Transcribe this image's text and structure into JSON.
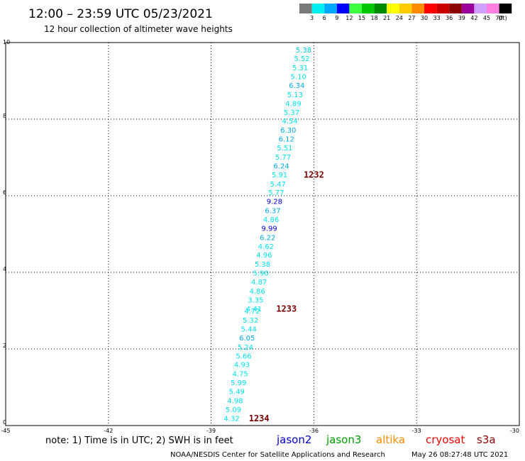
{
  "header": {
    "title": "12:00 – 23:59 UTC 05/23/2021",
    "subtitle": "12 hour collection of altimeter wave heights"
  },
  "legend": {
    "unit": "(ft)",
    "bins": [
      {
        "label": "3",
        "color": "#7a7a7a"
      },
      {
        "label": "6",
        "color": "#00f0f0"
      },
      {
        "label": "9",
        "color": "#00a8ff"
      },
      {
        "label": "12",
        "color": "#0000ff"
      },
      {
        "label": "15",
        "color": "#40ff40"
      },
      {
        "label": "18",
        "color": "#00c800"
      },
      {
        "label": "21",
        "color": "#008c00"
      },
      {
        "label": "24",
        "color": "#ffff00"
      },
      {
        "label": "27",
        "color": "#ffcc00"
      },
      {
        "label": "30",
        "color": "#ff8c00"
      },
      {
        "label": "33",
        "color": "#ff0000"
      },
      {
        "label": "36",
        "color": "#c80000"
      },
      {
        "label": "39",
        "color": "#8b0000"
      },
      {
        "label": "42",
        "color": "#9a009a"
      },
      {
        "label": "45",
        "color": "#d0a0ff"
      },
      {
        "label": "70",
        "color": "#ff80e0"
      },
      {
        "label": "",
        "color": "#000000"
      }
    ]
  },
  "chart_data": {
    "type": "scatter",
    "xlim": [
      -45,
      -30
    ],
    "ylim": [
      0,
      10
    ],
    "x_ticks": [
      -45,
      -42,
      -39,
      -36,
      -33,
      -30
    ],
    "y_ticks": [
      0,
      2,
      4,
      6,
      8,
      10
    ],
    "x_tick_labels": [
      "-45",
      "-42",
      "-39",
      "-36",
      "-33",
      "-30"
    ],
    "y_tick_labels": [
      "0",
      "2",
      "4",
      "6",
      "8",
      "10"
    ],
    "grid": true,
    "points": [
      {
        "x": -36.3,
        "y": 9.8,
        "label": "5.38",
        "color": "#00c8d8"
      },
      {
        "x": -36.35,
        "y": 9.57,
        "label": "5.52",
        "color": "#00e0f0"
      },
      {
        "x": -36.4,
        "y": 9.33,
        "label": "5.31",
        "color": "#00e0f0"
      },
      {
        "x": -36.45,
        "y": 9.1,
        "label": "5.10",
        "color": "#00e0f0"
      },
      {
        "x": -36.5,
        "y": 8.87,
        "label": "6.34",
        "color": "#00a8e8"
      },
      {
        "x": -36.55,
        "y": 8.63,
        "label": "5.13",
        "color": "#00e0f0"
      },
      {
        "x": -36.6,
        "y": 8.4,
        "label": "4.89",
        "color": "#00e0f0"
      },
      {
        "x": -36.65,
        "y": 8.17,
        "label": "5.37",
        "color": "#00e0f0"
      },
      {
        "x": -36.7,
        "y": 7.94,
        "label": "4.54",
        "color": "#00e0f0"
      },
      {
        "x": -36.75,
        "y": 7.7,
        "label": "6.30",
        "color": "#00a8e8"
      },
      {
        "x": -36.8,
        "y": 7.47,
        "label": "6.12",
        "color": "#00a8e8"
      },
      {
        "x": -36.85,
        "y": 7.24,
        "label": "5.51",
        "color": "#00e0f0"
      },
      {
        "x": -36.9,
        "y": 7.0,
        "label": "5.77",
        "color": "#00e0f0"
      },
      {
        "x": -36.95,
        "y": 6.77,
        "label": "6.24",
        "color": "#00a8e8"
      },
      {
        "x": -37.0,
        "y": 6.54,
        "label": "5.91",
        "color": "#00e0f0"
      },
      {
        "x": -37.05,
        "y": 6.3,
        "label": "5.47",
        "color": "#00e0f0"
      },
      {
        "x": -37.1,
        "y": 6.07,
        "label": "5.77",
        "color": "#00e0f0"
      },
      {
        "x": -37.15,
        "y": 5.84,
        "label": "9.28",
        "color": "#0000e0"
      },
      {
        "x": -37.2,
        "y": 5.6,
        "label": "6.37",
        "color": "#00a8e8"
      },
      {
        "x": -37.25,
        "y": 5.37,
        "label": "4.86",
        "color": "#00e0f0"
      },
      {
        "x": -37.3,
        "y": 5.14,
        "label": "9.99",
        "color": "#0000e0"
      },
      {
        "x": -37.35,
        "y": 4.9,
        "label": "6.22",
        "color": "#00a8e8"
      },
      {
        "x": -37.4,
        "y": 4.67,
        "label": "4.62",
        "color": "#00e0f0"
      },
      {
        "x": -37.45,
        "y": 4.44,
        "label": "4.96",
        "color": "#00e0f0"
      },
      {
        "x": -37.5,
        "y": 4.2,
        "label": "5.38",
        "color": "#00e0f0"
      },
      {
        "x": -37.55,
        "y": 3.97,
        "label": "5.90",
        "color": "#00e0f0"
      },
      {
        "x": -37.6,
        "y": 3.74,
        "label": "4.87",
        "color": "#00e0f0"
      },
      {
        "x": -37.65,
        "y": 3.5,
        "label": "4.86",
        "color": "#00e0f0"
      },
      {
        "x": -37.7,
        "y": 3.27,
        "label": "3.35",
        "color": "#00e0f0"
      },
      {
        "x": -37.75,
        "y": 3.04,
        "label": "4.41",
        "color": "#00e0f0"
      },
      {
        "x": -37.8,
        "y": 2.98,
        "label": "4.72",
        "color": "#00e0f0"
      },
      {
        "x": -37.85,
        "y": 2.74,
        "label": "5.32",
        "color": "#00e0f0"
      },
      {
        "x": -37.9,
        "y": 2.51,
        "label": "5.44",
        "color": "#00e0f0"
      },
      {
        "x": -37.95,
        "y": 2.28,
        "label": "6.05",
        "color": "#00a8e8"
      },
      {
        "x": -38.0,
        "y": 2.04,
        "label": "5.24",
        "color": "#00e0f0"
      },
      {
        "x": -38.05,
        "y": 1.81,
        "label": "5.66",
        "color": "#00e0f0"
      },
      {
        "x": -38.1,
        "y": 1.58,
        "label": "4.93",
        "color": "#00e0f0"
      },
      {
        "x": -38.15,
        "y": 1.34,
        "label": "4.75",
        "color": "#00e0f0"
      },
      {
        "x": -38.2,
        "y": 1.11,
        "label": "5.99",
        "color": "#00e0f0"
      },
      {
        "x": -38.25,
        "y": 0.88,
        "label": "5.49",
        "color": "#00e0f0"
      },
      {
        "x": -38.3,
        "y": 0.64,
        "label": "4.98",
        "color": "#00e0f0"
      },
      {
        "x": -38.35,
        "y": 0.41,
        "label": "5.09",
        "color": "#00e0f0"
      },
      {
        "x": -38.4,
        "y": 0.18,
        "label": "4.32",
        "color": "#00e0f0"
      }
    ],
    "pass_labels": [
      {
        "x": -36.0,
        "y": 6.54,
        "label": "1232"
      },
      {
        "x": -36.8,
        "y": 3.04,
        "label": "1233"
      },
      {
        "x": -37.6,
        "y": 0.18,
        "label": "1234"
      }
    ]
  },
  "note": "note: 1) Time is in UTC; 2) SWH is in feet",
  "satellites": [
    {
      "name": "jason2",
      "color": "#0000cc"
    },
    {
      "name": "jason3",
      "color": "#00a000"
    },
    {
      "name": "altika",
      "color": "#ff8c00"
    },
    {
      "name": "cryosat",
      "color": "#ee0000"
    },
    {
      "name": "s3a",
      "color": "#8b0000"
    }
  ],
  "footer": {
    "credit": "NOAA/NESDIS Center for Satellite Applications and Research",
    "timestamp": "May 26 08:27:48 UTC 2021"
  }
}
